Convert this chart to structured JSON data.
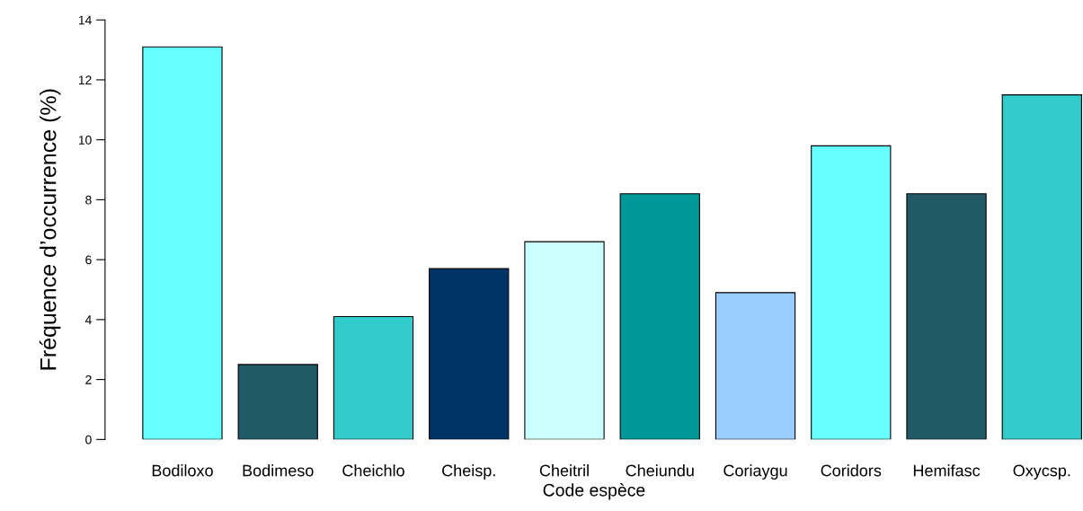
{
  "chart_data": {
    "type": "bar",
    "xlabel": "Code espèce",
    "ylabel": "Fréquence d’occurrence (%)",
    "categories": [
      "Bodiloxo",
      "Bodimeso",
      "Cheichlo",
      "Cheisp.",
      "Cheitril",
      "Cheiundu",
      "Coriaygu",
      "Coridors",
      "Hemifasc",
      "Oxycsp."
    ],
    "values": [
      13.1,
      2.5,
      4.1,
      5.7,
      6.6,
      8.2,
      4.9,
      9.8,
      8.2,
      11.5
    ],
    "colors": [
      "#66ffff",
      "#215a64",
      "#33cccc",
      "#003366",
      "#ccffff",
      "#009999",
      "#99ccff",
      "#66ffff",
      "#215a64",
      "#33cccc"
    ],
    "ylim": [
      0,
      14
    ],
    "yticks": [
      0,
      2,
      4,
      6,
      8,
      10,
      12,
      14
    ],
    "grid": false,
    "legend": false
  }
}
